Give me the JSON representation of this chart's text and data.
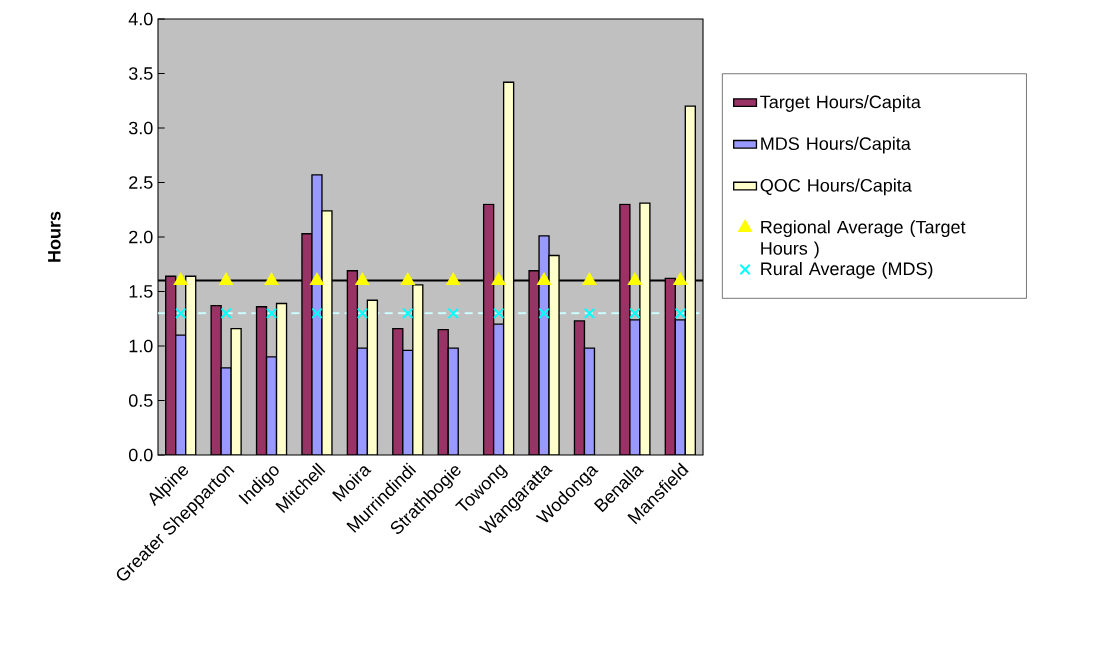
{
  "chart_data": {
    "type": "bar",
    "ylabel": "Hours",
    "categories": [
      "Alpine",
      "Greater Shepparton",
      "Indigo",
      "Mitchell",
      "Moira",
      "Murrindindi",
      "Strathbogie",
      "Towong",
      "Wangaratta",
      "Wodonga",
      "Benalla",
      "Mansfield"
    ],
    "series": [
      {
        "name": "Target Hours/Capita",
        "color": "#993366",
        "values": [
          1.64,
          1.37,
          1.36,
          2.03,
          1.69,
          1.16,
          1.15,
          2.3,
          1.69,
          1.23,
          2.3,
          1.62
        ]
      },
      {
        "name": "MDS Hours/Capita",
        "color": "#9999ff",
        "values": [
          1.1,
          0.8,
          0.9,
          2.57,
          0.98,
          0.96,
          0.98,
          1.2,
          2.01,
          0.98,
          1.24,
          1.24
        ]
      },
      {
        "name": "QOC Hours/Capita",
        "color": "#ffffcc",
        "values": [
          1.64,
          1.16,
          1.39,
          2.24,
          1.42,
          1.56,
          null,
          3.42,
          1.83,
          null,
          2.31,
          3.2
        ]
      },
      {
        "name": "Regional Average (Target Hours )",
        "type": "scatter",
        "color": "#ffff00",
        "marker": "triangle",
        "values": [
          1.6,
          1.6,
          1.6,
          1.6,
          1.6,
          1.6,
          1.6,
          1.6,
          1.6,
          1.6,
          1.6,
          1.6
        ]
      },
      {
        "name": "Rural Average (MDS)",
        "type": "scatter",
        "color": "#00ffff",
        "marker": "cross",
        "values": [
          1.3,
          1.3,
          1.3,
          1.3,
          1.3,
          1.3,
          1.3,
          1.3,
          1.3,
          1.3,
          1.3,
          1.3
        ]
      }
    ],
    "ref_lines": [
      {
        "axis": "y",
        "value": 1.6,
        "color": "#000000",
        "line_style": "solid"
      },
      {
        "axis": "y",
        "value": 1.3,
        "color": "#ccffff",
        "line_style": "dashed"
      }
    ],
    "ylim": [
      0,
      4
    ],
    "yticks": [
      {
        "value": 0,
        "label": "0.0"
      },
      {
        "value": 0.5,
        "label": "0.5"
      },
      {
        "value": 1,
        "label": "1.0"
      },
      {
        "value": 1.5,
        "label": "1.5"
      },
      {
        "value": 2,
        "label": "2.0"
      },
      {
        "value": 2.5,
        "label": "2.5"
      },
      {
        "value": 3,
        "label": "3.0"
      },
      {
        "value": 3.5,
        "label": "3.5"
      },
      {
        "value": 4,
        "label": "4.0"
      }
    ],
    "grid": false,
    "legend": "right"
  }
}
